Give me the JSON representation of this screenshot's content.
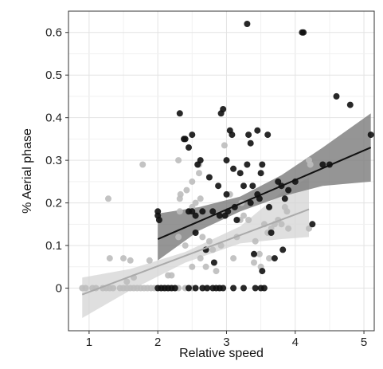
{
  "chart_data": {
    "type": "scatter",
    "title": "",
    "xlabel": "Relative speed",
    "ylabel": "% Aerial phase",
    "xlim": [
      0.7,
      5.15
    ],
    "ylim": [
      -0.1,
      0.65
    ],
    "x_ticks": [
      1,
      2,
      3,
      4,
      5
    ],
    "y_ticks": [
      0,
      0.1,
      0.2,
      0.3,
      0.4,
      0.5,
      0.6
    ],
    "x_tick_labels": [
      "1",
      "2",
      "3",
      "4",
      "5"
    ],
    "y_tick_labels": [
      "0",
      "0.1",
      "0.2",
      "0.3",
      "0.4",
      "0.5",
      "0.6"
    ],
    "grid": true,
    "legend": "none",
    "series": [
      {
        "color": "#bdbdbd",
        "points": [
          [
            0.9,
            0
          ],
          [
            0.95,
            0
          ],
          [
            1.05,
            0
          ],
          [
            1.1,
            0
          ],
          [
            1.2,
            0
          ],
          [
            1.25,
            0
          ],
          [
            1.3,
            0
          ],
          [
            1.35,
            0
          ],
          [
            1.45,
            0
          ],
          [
            1.5,
            0
          ],
          [
            1.55,
            0
          ],
          [
            1.6,
            0
          ],
          [
            1.65,
            0
          ],
          [
            1.7,
            0
          ],
          [
            1.75,
            0
          ],
          [
            1.8,
            0
          ],
          [
            1.85,
            0
          ],
          [
            1.9,
            0
          ],
          [
            1.95,
            0
          ],
          [
            2.0,
            0
          ],
          [
            2.05,
            0
          ],
          [
            2.1,
            0
          ],
          [
            2.15,
            0
          ],
          [
            2.2,
            0
          ],
          [
            2.25,
            0
          ],
          [
            2.3,
            0
          ],
          [
            2.4,
            0
          ],
          [
            2.5,
            0
          ],
          [
            2.7,
            0
          ],
          [
            2.9,
            0
          ],
          [
            1.28,
            0.21
          ],
          [
            1.3,
            0.07
          ],
          [
            1.5,
            0.07
          ],
          [
            1.6,
            0.065
          ],
          [
            1.65,
            0.025
          ],
          [
            1.55,
            0.015
          ],
          [
            1.78,
            0.29
          ],
          [
            1.88,
            0.065
          ],
          [
            2.15,
            0.03
          ],
          [
            2.2,
            0.03
          ],
          [
            2.3,
            0.12
          ],
          [
            2.3,
            0.3
          ],
          [
            2.32,
            0.21
          ],
          [
            2.32,
            0.18
          ],
          [
            2.33,
            0.22
          ],
          [
            2.4,
            0.1
          ],
          [
            2.42,
            0.23
          ],
          [
            2.5,
            0.19
          ],
          [
            2.5,
            0.25
          ],
          [
            2.5,
            0.05
          ],
          [
            2.55,
            0.2
          ],
          [
            2.6,
            0.29
          ],
          [
            2.6,
            0.27
          ],
          [
            2.62,
            0.21
          ],
          [
            2.62,
            0.07
          ],
          [
            2.65,
            0.12
          ],
          [
            2.7,
            0.05
          ],
          [
            2.75,
            0.11
          ],
          [
            2.8,
            0.09
          ],
          [
            2.85,
            0.04
          ],
          [
            2.92,
            0.1
          ],
          [
            2.97,
            0.335
          ],
          [
            3.05,
            0.22
          ],
          [
            3.1,
            0.07
          ],
          [
            3.15,
            0.12
          ],
          [
            3.2,
            0.16
          ],
          [
            3.22,
            0.2
          ],
          [
            3.25,
            0.17
          ],
          [
            3.32,
            0.16
          ],
          [
            3.4,
            0.06
          ],
          [
            3.42,
            0.11
          ],
          [
            3.48,
            0.08
          ],
          [
            3.5,
            0.05
          ],
          [
            3.55,
            0.15
          ],
          [
            3.6,
            0.13
          ],
          [
            3.62,
            0.07
          ],
          [
            3.65,
            0.14
          ],
          [
            3.7,
            0.15
          ],
          [
            3.75,
            0.16
          ],
          [
            3.8,
            0.15
          ],
          [
            3.85,
            0.19
          ],
          [
            3.88,
            0.18
          ],
          [
            3.9,
            0.14
          ],
          [
            4.2,
            0.14
          ],
          [
            4.2,
            0.3
          ],
          [
            4.22,
            0.29
          ]
        ]
      },
      {
        "color": "#111111",
        "points": [
          [
            2.0,
            0.18
          ],
          [
            2.0,
            0.17
          ],
          [
            2.02,
            0.16
          ],
          [
            2.0,
            0
          ],
          [
            2.05,
            0
          ],
          [
            2.1,
            0
          ],
          [
            2.15,
            0
          ],
          [
            2.2,
            0
          ],
          [
            2.25,
            0
          ],
          [
            2.45,
            0
          ],
          [
            2.55,
            0
          ],
          [
            2.65,
            0
          ],
          [
            2.72,
            0
          ],
          [
            2.8,
            0
          ],
          [
            2.85,
            0
          ],
          [
            2.9,
            0
          ],
          [
            2.95,
            0
          ],
          [
            3.1,
            0
          ],
          [
            3.25,
            0
          ],
          [
            3.42,
            0
          ],
          [
            3.5,
            0
          ],
          [
            3.55,
            0
          ],
          [
            2.32,
            0.41
          ],
          [
            2.38,
            0.35
          ],
          [
            2.4,
            0.35
          ],
          [
            2.45,
            0.33
          ],
          [
            2.5,
            0.36
          ],
          [
            2.45,
            0.18
          ],
          [
            2.5,
            0.18
          ],
          [
            2.55,
            0.17
          ],
          [
            2.55,
            0.13
          ],
          [
            2.58,
            0.29
          ],
          [
            2.62,
            0.3
          ],
          [
            2.65,
            0.18
          ],
          [
            2.7,
            0.09
          ],
          [
            2.75,
            0.26
          ],
          [
            2.8,
            0.18
          ],
          [
            2.82,
            0.06
          ],
          [
            2.88,
            0.24
          ],
          [
            2.9,
            0.17
          ],
          [
            2.92,
            0.41
          ],
          [
            2.95,
            0.42
          ],
          [
            2.98,
            0.17
          ],
          [
            3.0,
            0.3
          ],
          [
            3.0,
            0.22
          ],
          [
            3.02,
            0.18
          ],
          [
            3.05,
            0.37
          ],
          [
            3.08,
            0.36
          ],
          [
            3.1,
            0.28
          ],
          [
            3.12,
            0.19
          ],
          [
            3.15,
            0.16
          ],
          [
            3.2,
            0.27
          ],
          [
            3.25,
            0.24
          ],
          [
            3.3,
            0.62
          ],
          [
            3.3,
            0.29
          ],
          [
            3.32,
            0.36
          ],
          [
            3.35,
            0.34
          ],
          [
            3.35,
            0.2
          ],
          [
            3.38,
            0.24
          ],
          [
            3.4,
            0.08
          ],
          [
            3.45,
            0.37
          ],
          [
            3.45,
            0.22
          ],
          [
            3.48,
            0.21
          ],
          [
            3.5,
            0.27
          ],
          [
            3.52,
            0.29
          ],
          [
            3.52,
            0.04
          ],
          [
            3.6,
            0.36
          ],
          [
            3.62,
            0.19
          ],
          [
            3.65,
            0.13
          ],
          [
            3.7,
            0.07
          ],
          [
            3.75,
            0.25
          ],
          [
            3.8,
            0.24
          ],
          [
            3.82,
            0.09
          ],
          [
            3.85,
            0.21
          ],
          [
            3.9,
            0.23
          ],
          [
            4.0,
            0.25
          ],
          [
            4.1,
            0.6
          ],
          [
            4.12,
            0.6
          ],
          [
            4.25,
            0.15
          ],
          [
            4.4,
            0.29
          ],
          [
            4.5,
            0.29
          ],
          [
            4.6,
            0.45
          ],
          [
            4.8,
            0.43
          ],
          [
            5.1,
            0.36
          ]
        ]
      }
    ],
    "regression": [
      {
        "color": "#aaaaaa",
        "band_color": "#d4d4d4",
        "x": [
          0.9,
          4.2
        ],
        "y": [
          -0.015,
          0.185
        ],
        "band": {
          "x": [
            0.9,
            1.6,
            2.4,
            3.2,
            3.8,
            4.2
          ],
          "lower": [
            -0.07,
            -0.005,
            0.06,
            0.105,
            0.115,
            0.12
          ],
          "upper": [
            0.025,
            0.045,
            0.085,
            0.145,
            0.225,
            0.26
          ]
        }
      },
      {
        "color": "#111111",
        "band_color": "#7a7a7a",
        "x": [
          2.0,
          5.1
        ],
        "y": [
          0.115,
          0.33
        ],
        "band": {
          "x": [
            2.0,
            2.6,
            3.2,
            3.8,
            4.4,
            5.1
          ],
          "lower": [
            0.065,
            0.135,
            0.18,
            0.215,
            0.24,
            0.25
          ],
          "upper": [
            0.175,
            0.19,
            0.215,
            0.265,
            0.33,
            0.41
          ]
        }
      }
    ]
  }
}
